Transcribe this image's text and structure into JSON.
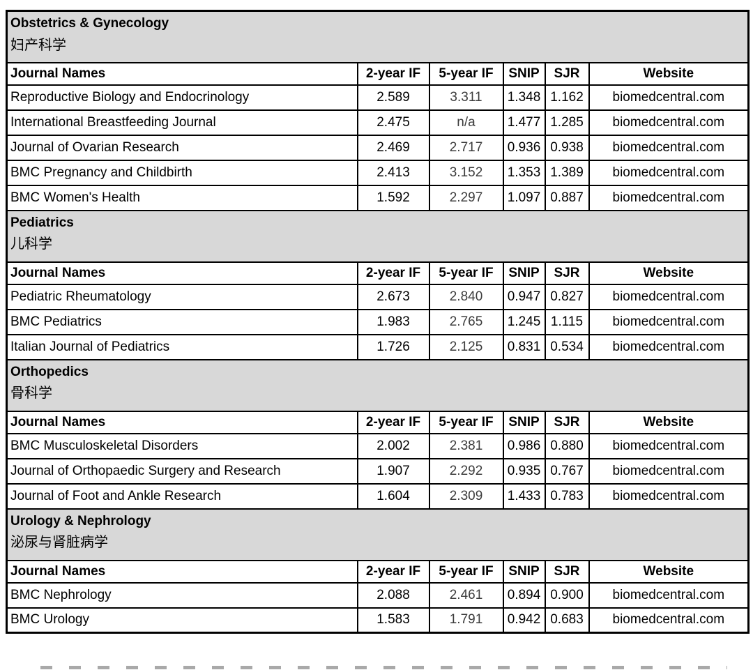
{
  "table": {
    "columns": [
      "Journal Names",
      "2-year IF",
      "5-year IF",
      "SNIP",
      "SJR",
      "Website"
    ],
    "sections": [
      {
        "title_en": "Obstetrics & Gynecology",
        "title_zh": "妇产科学",
        "rows": [
          {
            "name": "Reproductive Biology and Endocrinology",
            "if2": "2.589",
            "if5": "3.311",
            "snip": "1.348",
            "sjr": "1.162",
            "website": "biomedcentral.com"
          },
          {
            "name": "International Breastfeeding Journal",
            "if2": "2.475",
            "if5": "n/a",
            "snip": "1.477",
            "sjr": "1.285",
            "website": "biomedcentral.com"
          },
          {
            "name": "Journal of Ovarian Research",
            "if2": "2.469",
            "if5": "2.717",
            "snip": "0.936",
            "sjr": "0.938",
            "website": "biomedcentral.com"
          },
          {
            "name": "BMC Pregnancy and Childbirth",
            "if2": "2.413",
            "if5": "3.152",
            "snip": "1.353",
            "sjr": "1.389",
            "website": "biomedcentral.com"
          },
          {
            "name": "BMC Women's Health",
            "if2": "1.592",
            "if5": "2.297",
            "snip": "1.097",
            "sjr": "0.887",
            "website": "biomedcentral.com"
          }
        ]
      },
      {
        "title_en": "Pediatrics",
        "title_zh": "儿科学",
        "rows": [
          {
            "name": "Pediatric Rheumatology",
            "if2": "2.673",
            "if5": "2.840",
            "snip": "0.947",
            "sjr": "0.827",
            "website": "biomedcentral.com"
          },
          {
            "name": "BMC Pediatrics",
            "if2": "1.983",
            "if5": "2.765",
            "snip": "1.245",
            "sjr": "1.115",
            "website": "biomedcentral.com"
          },
          {
            "name": "Italian Journal of Pediatrics",
            "if2": "1.726",
            "if5": "2.125",
            "snip": "0.831",
            "sjr": "0.534",
            "website": "biomedcentral.com"
          }
        ]
      },
      {
        "title_en": "Orthopedics",
        "title_zh": "骨科学",
        "rows": [
          {
            "name": "BMC Musculoskeletal Disorders",
            "if2": "2.002",
            "if5": "2.381",
            "snip": "0.986",
            "sjr": "0.880",
            "website": "biomedcentral.com"
          },
          {
            "name": "Journal of Orthopaedic Surgery and Research",
            "if2": "1.907",
            "if5": "2.292",
            "snip": "0.935",
            "sjr": "0.767",
            "website": "biomedcentral.com"
          },
          {
            "name": "Journal of Foot and Ankle Research",
            "if2": "1.604",
            "if5": "2.309",
            "snip": "1.433",
            "sjr": "0.783",
            "website": "biomedcentral.com"
          }
        ]
      },
      {
        "title_en": "Urology & Nephrology",
        "title_zh": "泌尿与肾脏病学",
        "rows": [
          {
            "name": "BMC Nephrology",
            "if2": "2.088",
            "if5": "2.461",
            "snip": "0.894",
            "sjr": "0.900",
            "website": "biomedcentral.com"
          },
          {
            "name": "BMC Urology",
            "if2": "1.583",
            "if5": "1.791",
            "snip": "0.942",
            "sjr": "0.683",
            "website": "biomedcentral.com"
          }
        ]
      }
    ]
  },
  "colors": {
    "section_header_bg": "#d8d8d8",
    "border": "#000000",
    "text": "#000000",
    "muted_value": "#3c3c3c",
    "dash_line": "#a9a9a9"
  }
}
